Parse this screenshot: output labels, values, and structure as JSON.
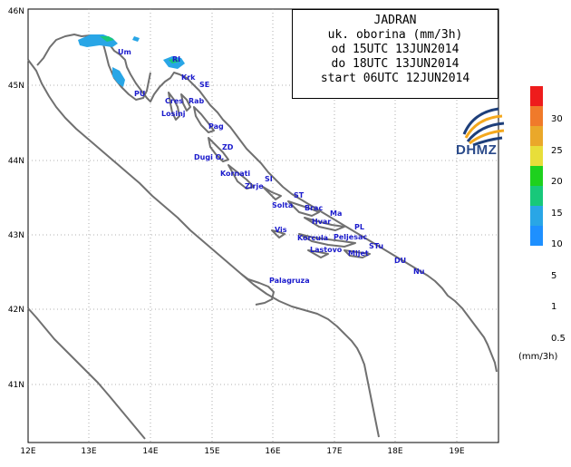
{
  "title": {
    "lines": [
      "JADRAN",
      "uk. oborina (mm/3h)",
      "od 15UTC 13JUN2014",
      "do 18UTC 13JUN2014",
      "start 06UTC 12JUN2014"
    ]
  },
  "logo": {
    "text": "DHMZ",
    "colors": [
      "#1e3f7a",
      "#f4a81d"
    ]
  },
  "axes": {
    "x_ticks": [
      "12E",
      "13E",
      "14E",
      "15E",
      "16E",
      "17E",
      "18E",
      "19E"
    ],
    "y_ticks": [
      "46N",
      "45N",
      "44N",
      "43N",
      "42N",
      "41N"
    ]
  },
  "legend": {
    "unit": "(mm/3h)",
    "labels": [
      "30",
      "25",
      "20",
      "15",
      "10",
      "5",
      "1",
      "0.5"
    ],
    "colors": [
      "#ee1c1c",
      "#f07a2a",
      "#eaa82a",
      "#e8de3a",
      "#1ed11e",
      "#18c87a",
      "#29a6e6",
      "#1e90ff"
    ]
  },
  "places": [
    {
      "name": "Um"
    },
    {
      "name": "PU"
    },
    {
      "name": "RI"
    },
    {
      "name": "Krk"
    },
    {
      "name": "SE"
    },
    {
      "name": "Cres"
    },
    {
      "name": "Rab"
    },
    {
      "name": "Losinj"
    },
    {
      "name": "Pag"
    },
    {
      "name": "ZD"
    },
    {
      "name": "Dugi O."
    },
    {
      "name": "Kornati"
    },
    {
      "name": "SI"
    },
    {
      "name": "Zirje"
    },
    {
      "name": "ST"
    },
    {
      "name": "Solta"
    },
    {
      "name": "Brac"
    },
    {
      "name": "Ma"
    },
    {
      "name": "Hvar"
    },
    {
      "name": "PL"
    },
    {
      "name": "Vis"
    },
    {
      "name": "Korcula"
    },
    {
      "name": "Peljesac"
    },
    {
      "name": "Lastovo"
    },
    {
      "name": "STu"
    },
    {
      "name": "Mljet"
    },
    {
      "name": "DU"
    },
    {
      "name": "Nu"
    },
    {
      "name": "Palagruza"
    }
  ],
  "precip_colors": {
    "light": "#29a6e6",
    "medium": "#18c87a"
  }
}
